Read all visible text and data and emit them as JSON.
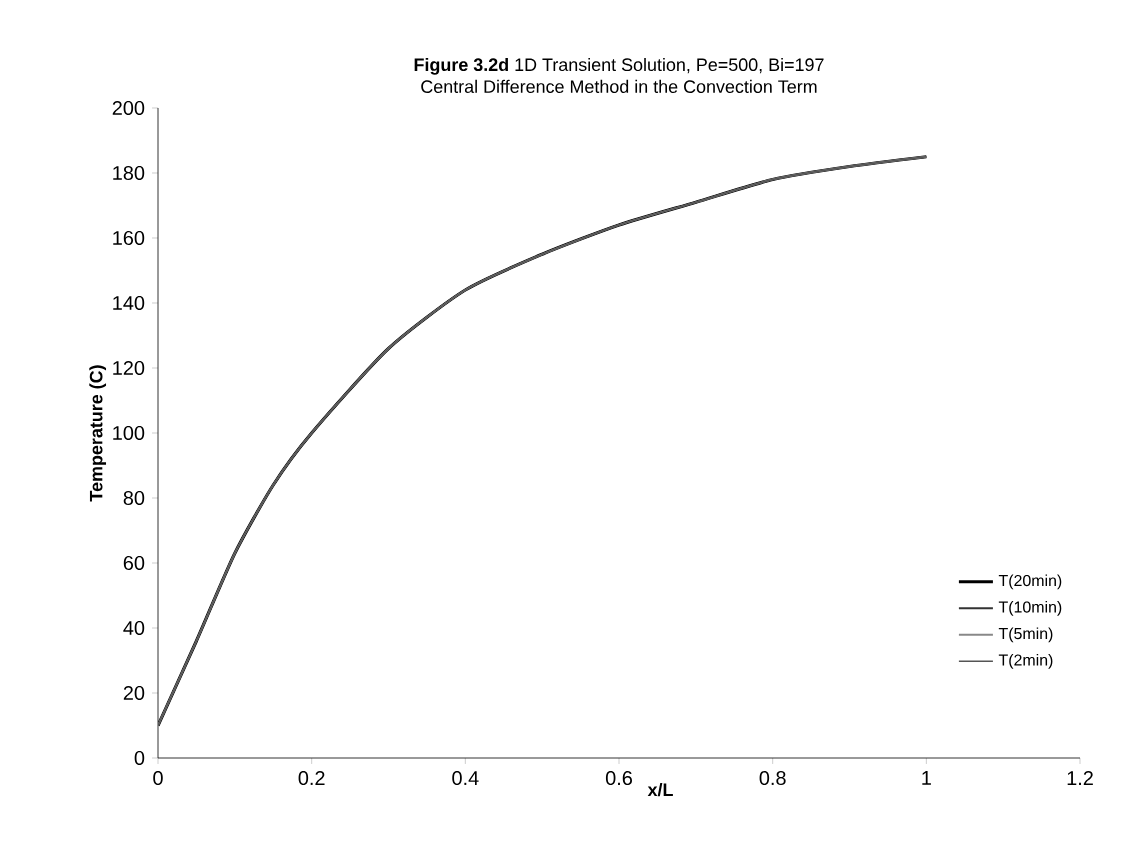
{
  "chart_data": {
    "type": "line",
    "title": "**Figure 3.2d**  1D Transient Solution, Pe=500, Bi=197",
    "subtitle": "Central Difference Method in the Convection Term",
    "xlabel": "x/L",
    "ylabel": "Temperature (C)",
    "x": [
      0,
      0.05,
      0.1,
      0.15,
      0.2,
      0.3,
      0.4,
      0.5,
      0.6,
      0.7,
      0.8,
      0.9,
      1
    ],
    "series": [
      {
        "name": "T(20min)",
        "color": "#000000",
        "values": [
          10,
          36,
          63,
          84,
          100,
          126,
          144,
          155,
          164,
          171,
          178,
          182,
          185
        ]
      },
      {
        "name": "T(10min)",
        "color": "#333333",
        "values": [
          10,
          36,
          63,
          84,
          100,
          126,
          144,
          155,
          164,
          171,
          178,
          182,
          185
        ]
      },
      {
        "name": "T(5min)",
        "color": "#888888",
        "values": [
          10,
          36,
          63,
          84,
          100,
          126,
          144,
          155,
          164,
          171,
          178,
          182,
          185
        ]
      },
      {
        "name": "T(2min)",
        "color": "#555555",
        "values": [
          10,
          36,
          63,
          84,
          100,
          126,
          144,
          155,
          164,
          171,
          178,
          182,
          185
        ]
      }
    ],
    "xlim": [
      0,
      1.2
    ],
    "ylim": [
      0,
      200
    ],
    "xticks": [
      0,
      0.2,
      0.4,
      0.6,
      0.8,
      1,
      1.2
    ],
    "yticks": [
      0,
      20,
      40,
      60,
      80,
      100,
      120,
      140,
      160,
      180,
      200
    ],
    "grid": false,
    "legend": "right",
    "marker": "none",
    "line_style": "solid"
  }
}
